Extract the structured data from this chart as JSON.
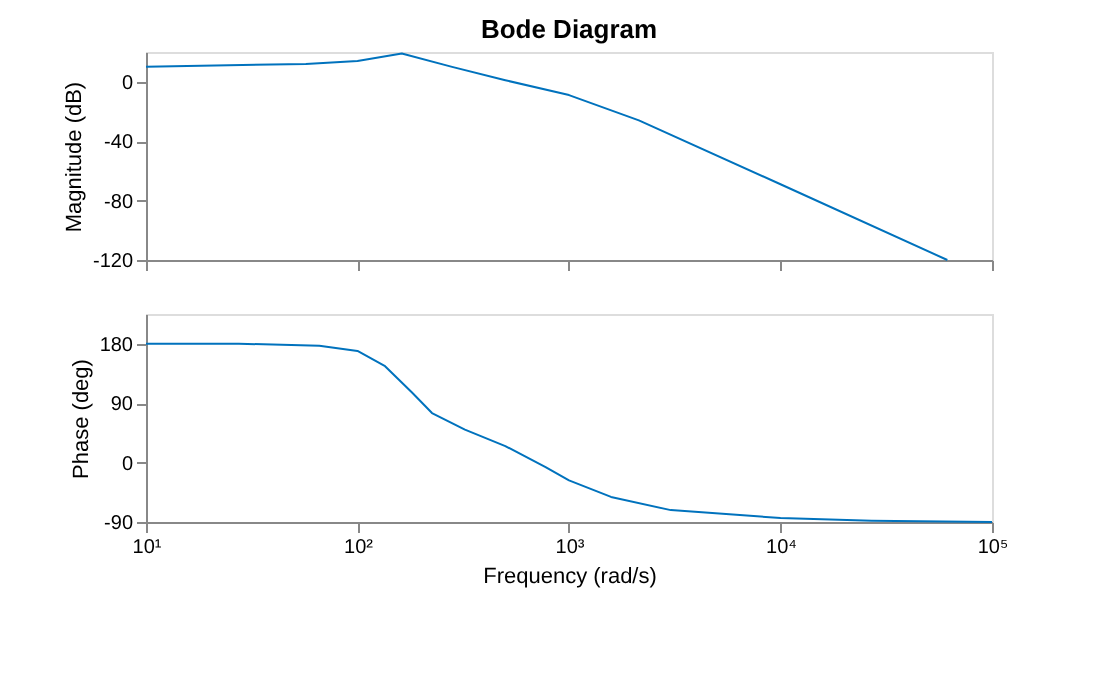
{
  "chart_data": [
    {
      "type": "line",
      "title": "Bode Diagram",
      "ylabel": "Magnitude (dB)",
      "log": "x",
      "grid": false,
      "tick_labels": "y",
      "xlim": [
        10,
        100000
      ],
      "xticks": [
        10,
        100,
        1000,
        10000,
        100000
      ],
      "ylim": [
        -120,
        20
      ],
      "yticks": [
        -120,
        -80,
        -40,
        0
      ],
      "series": [
        {
          "color": "#0072bd",
          "x": [
            10,
            57,
            100,
            162,
            280,
            500,
            1000,
            2140,
            10000,
            61500
          ],
          "values": [
            10,
            12,
            14,
            19,
            10,
            1,
            -9,
            -26,
            -69,
            -120
          ]
        }
      ]
    },
    {
      "type": "line",
      "xlabel": "Frequency (rad/s)",
      "ylabel": "Phase (deg)",
      "log": "x",
      "grid": false,
      "xlim": [
        10,
        100000
      ],
      "xticks": [
        {
          "value": 10,
          "label": "10¹"
        },
        {
          "value": 100,
          "label": "10²"
        },
        {
          "value": 1000,
          "label": "10³"
        },
        {
          "value": 10000,
          "label": "10⁴"
        },
        {
          "value": 100000,
          "label": "10⁵"
        }
      ],
      "ylim": [
        -90,
        225
      ],
      "yticks": [
        -90,
        0,
        90,
        180
      ],
      "series": [
        {
          "color": "#0072bd",
          "x": [
            10,
            27.5,
            66,
            100,
            135,
            181,
            225,
            322,
            500,
            775,
            1000,
            1580,
            3030,
            10000,
            27000,
            100000
          ],
          "values": [
            180,
            180,
            177,
            169,
            146,
            106,
            75,
            50,
            25,
            -7,
            -27,
            -52,
            -72,
            -84,
            -88,
            -90
          ]
        }
      ]
    }
  ]
}
